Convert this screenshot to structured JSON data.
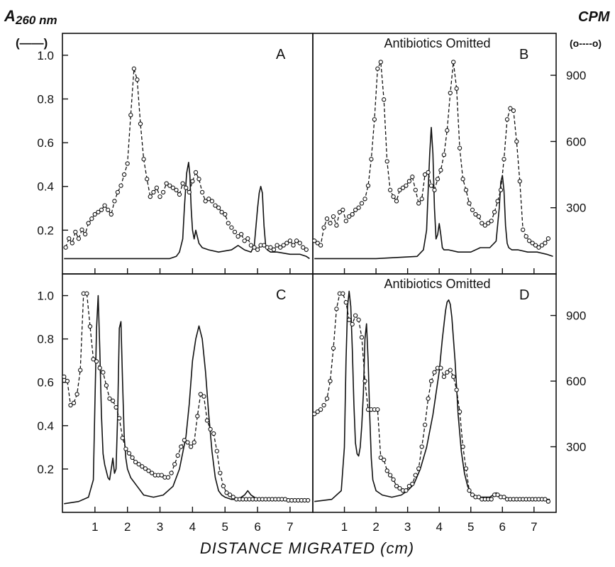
{
  "chart_data": {
    "type": "line",
    "left_axis_title_prefix": "A",
    "left_axis_title_sub": "260 nm",
    "left_axis_legend": "(——)",
    "right_axis_title": "CPM",
    "right_axis_legend": "(o----o)",
    "xlabel": "DISTANCE  MIGRATED (cm)",
    "x_ticks": [
      "1",
      "2",
      "3",
      "4",
      "5",
      "6",
      "7"
    ],
    "xlim": [
      0,
      7.7
    ],
    "left_ticks": [
      "0.2",
      "0.4",
      "0.6",
      "0.8",
      "1.0"
    ],
    "left_ylim": [
      0,
      1.1
    ],
    "right_ticks": [
      "300",
      "600",
      "900"
    ],
    "right_ylim": [
      0,
      1090
    ],
    "panels": [
      {
        "id": "A",
        "letter": "A",
        "annotation": "",
        "absorbance": {
          "x": [
            0.05,
            2.0,
            3.3,
            3.5,
            3.6,
            3.7,
            3.75,
            3.82,
            3.88,
            3.92,
            3.96,
            4.0,
            4.05,
            4.1,
            4.2,
            4.3,
            4.5,
            4.8,
            5.2,
            5.4,
            5.6,
            5.8,
            5.9,
            6.0,
            6.05,
            6.1,
            6.15,
            6.2,
            6.25,
            6.3,
            6.4,
            6.6,
            7.0,
            7.3,
            7.5,
            7.6
          ],
          "y": [
            0.07,
            0.07,
            0.07,
            0.08,
            0.1,
            0.16,
            0.3,
            0.46,
            0.51,
            0.45,
            0.3,
            0.2,
            0.16,
            0.2,
            0.14,
            0.12,
            0.11,
            0.1,
            0.11,
            0.13,
            0.11,
            0.1,
            0.13,
            0.3,
            0.37,
            0.4,
            0.37,
            0.22,
            0.13,
            0.11,
            0.1,
            0.1,
            0.09,
            0.09,
            0.08,
            0.07
          ]
        },
        "cpm": {
          "x": [
            0.1,
            0.2,
            0.3,
            0.4,
            0.5,
            0.6,
            0.7,
            0.8,
            0.9,
            1.0,
            1.1,
            1.2,
            1.3,
            1.4,
            1.5,
            1.6,
            1.7,
            1.8,
            1.9,
            2.0,
            2.1,
            2.2,
            2.3,
            2.4,
            2.5,
            2.6,
            2.7,
            2.8,
            2.9,
            3.0,
            3.1,
            3.2,
            3.3,
            3.4,
            3.5,
            3.6,
            3.7,
            3.8,
            3.9,
            4.0,
            4.1,
            4.2,
            4.3,
            4.4,
            4.5,
            4.6,
            4.7,
            4.8,
            4.9,
            5.0,
            5.1,
            5.2,
            5.3,
            5.4,
            5.5,
            5.6,
            5.7,
            5.8,
            5.9,
            6.0,
            6.1,
            6.2,
            6.3,
            6.4,
            6.5,
            6.6,
            6.7,
            6.8,
            6.9,
            7.0,
            7.1,
            7.2,
            7.3,
            7.4,
            7.5
          ],
          "y": [
            120,
            160,
            140,
            190,
            160,
            200,
            180,
            230,
            250,
            270,
            280,
            290,
            310,
            290,
            270,
            330,
            370,
            400,
            450,
            500,
            720,
            930,
            880,
            680,
            520,
            430,
            350,
            370,
            390,
            350,
            370,
            410,
            400,
            390,
            380,
            360,
            410,
            390,
            370,
            420,
            460,
            430,
            370,
            330,
            340,
            330,
            310,
            300,
            280,
            270,
            230,
            210,
            190,
            170,
            180,
            150,
            160,
            130,
            120,
            110,
            130,
            130,
            120,
            120,
            110,
            130,
            120,
            130,
            140,
            150,
            130,
            150,
            140,
            120,
            110
          ]
        }
      },
      {
        "id": "B",
        "letter": "B",
        "annotation": "Antibiotics Omitted",
        "absorbance": {
          "x": [
            0.05,
            2.0,
            3.3,
            3.5,
            3.6,
            3.65,
            3.7,
            3.75,
            3.8,
            3.85,
            3.9,
            3.95,
            4.0,
            4.05,
            4.1,
            4.15,
            4.3,
            4.6,
            5.0,
            5.3,
            5.6,
            5.8,
            5.9,
            5.95,
            6.0,
            6.05,
            6.1,
            6.15,
            6.2,
            6.3,
            6.5,
            6.8,
            7.1,
            7.4,
            7.6
          ],
          "y": [
            0.07,
            0.07,
            0.08,
            0.11,
            0.2,
            0.38,
            0.55,
            0.67,
            0.55,
            0.3,
            0.16,
            0.18,
            0.23,
            0.18,
            0.12,
            0.11,
            0.11,
            0.1,
            0.1,
            0.12,
            0.12,
            0.15,
            0.3,
            0.42,
            0.45,
            0.38,
            0.22,
            0.14,
            0.12,
            0.11,
            0.11,
            0.1,
            0.1,
            0.09,
            0.08
          ]
        },
        "cpm": {
          "x": [
            0.05,
            0.15,
            0.25,
            0.35,
            0.45,
            0.55,
            0.65,
            0.75,
            0.85,
            0.95,
            1.05,
            1.15,
            1.25,
            1.35,
            1.45,
            1.55,
            1.65,
            1.75,
            1.85,
            1.95,
            2.05,
            2.15,
            2.25,
            2.35,
            2.45,
            2.55,
            2.65,
            2.75,
            2.85,
            2.95,
            3.05,
            3.15,
            3.25,
            3.35,
            3.45,
            3.55,
            3.65,
            3.75,
            3.85,
            3.95,
            4.05,
            4.15,
            4.25,
            4.35,
            4.45,
            4.55,
            4.65,
            4.75,
            4.85,
            4.95,
            5.05,
            5.15,
            5.25,
            5.35,
            5.45,
            5.55,
            5.65,
            5.75,
            5.85,
            5.95,
            6.05,
            6.15,
            6.25,
            6.35,
            6.45,
            6.55,
            6.65,
            6.75,
            6.85,
            6.95,
            7.05,
            7.15,
            7.25,
            7.35,
            7.45
          ],
          "y": [
            150,
            140,
            130,
            210,
            250,
            230,
            260,
            220,
            280,
            290,
            240,
            260,
            270,
            290,
            300,
            320,
            340,
            400,
            520,
            700,
            930,
            960,
            790,
            510,
            380,
            350,
            330,
            380,
            390,
            400,
            420,
            440,
            380,
            320,
            340,
            450,
            460,
            400,
            380,
            430,
            470,
            540,
            650,
            820,
            960,
            840,
            570,
            430,
            380,
            320,
            290,
            270,
            260,
            230,
            220,
            230,
            240,
            280,
            330,
            380,
            520,
            700,
            750,
            740,
            600,
            420,
            200,
            170,
            150,
            140,
            130,
            120,
            130,
            140,
            160
          ]
        }
      },
      {
        "id": "C",
        "letter": "C",
        "annotation": "",
        "absorbance": {
          "x": [
            0.05,
            0.5,
            0.8,
            0.95,
            1.0,
            1.05,
            1.1,
            1.15,
            1.2,
            1.25,
            1.3,
            1.4,
            1.45,
            1.5,
            1.55,
            1.6,
            1.65,
            1.7,
            1.75,
            1.8,
            1.85,
            1.9,
            1.95,
            2.0,
            2.1,
            2.3,
            2.5,
            2.8,
            3.1,
            3.4,
            3.6,
            3.8,
            3.9,
            4.0,
            4.1,
            4.2,
            4.3,
            4.4,
            4.5,
            4.6,
            4.7,
            4.8,
            4.9,
            5.0,
            5.2,
            5.4,
            5.6,
            5.7,
            5.8,
            6.0,
            6.5,
            7.0,
            7.5
          ],
          "y": [
            0.04,
            0.05,
            0.07,
            0.15,
            0.5,
            0.85,
            1.0,
            0.75,
            0.45,
            0.27,
            0.22,
            0.16,
            0.15,
            0.2,
            0.25,
            0.18,
            0.2,
            0.45,
            0.85,
            0.88,
            0.6,
            0.35,
            0.25,
            0.2,
            0.16,
            0.12,
            0.08,
            0.07,
            0.08,
            0.12,
            0.2,
            0.35,
            0.5,
            0.7,
            0.8,
            0.86,
            0.8,
            0.65,
            0.45,
            0.28,
            0.16,
            0.1,
            0.08,
            0.07,
            0.06,
            0.06,
            0.08,
            0.1,
            0.08,
            0.06,
            0.06,
            0.06,
            0.06
          ]
        },
        "cpm": {
          "x": [
            0.05,
            0.15,
            0.25,
            0.35,
            0.45,
            0.55,
            0.65,
            0.75,
            0.85,
            0.95,
            1.05,
            1.15,
            1.25,
            1.35,
            1.45,
            1.55,
            1.65,
            1.75,
            1.85,
            1.95,
            2.05,
            2.15,
            2.25,
            2.35,
            2.45,
            2.55,
            2.65,
            2.75,
            2.85,
            2.95,
            3.05,
            3.15,
            3.25,
            3.35,
            3.45,
            3.55,
            3.65,
            3.75,
            3.85,
            3.95,
            4.05,
            4.15,
            4.25,
            4.35,
            4.45,
            4.55,
            4.65,
            4.75,
            4.85,
            4.95,
            5.05,
            5.15,
            5.25,
            5.35,
            5.45,
            5.55,
            5.65,
            5.75,
            5.85,
            5.95,
            6.05,
            6.15,
            6.25,
            6.35,
            6.45,
            6.55,
            6.65,
            6.75,
            6.85,
            6.95,
            7.05,
            7.15,
            7.25,
            7.35,
            7.45,
            7.55
          ],
          "y": [
            620,
            600,
            490,
            500,
            540,
            650,
            1000,
            1000,
            850,
            700,
            690,
            660,
            640,
            580,
            520,
            510,
            480,
            430,
            340,
            290,
            270,
            250,
            230,
            220,
            210,
            200,
            190,
            180,
            170,
            170,
            170,
            160,
            160,
            180,
            220,
            260,
            300,
            330,
            320,
            300,
            320,
            440,
            540,
            530,
            420,
            380,
            360,
            280,
            180,
            120,
            90,
            80,
            70,
            60,
            60,
            60,
            60,
            60,
            60,
            60,
            60,
            60,
            60,
            60,
            60,
            60,
            60,
            60,
            60,
            55,
            55,
            55,
            55,
            55,
            55,
            55
          ]
        }
      },
      {
        "id": "D",
        "letter": "D",
        "annotation": "Antibiotics Omitted",
        "absorbance": {
          "x": [
            0.05,
            0.6,
            0.9,
            1.0,
            1.05,
            1.1,
            1.15,
            1.2,
            1.25,
            1.3,
            1.35,
            1.4,
            1.45,
            1.5,
            1.55,
            1.6,
            1.65,
            1.7,
            1.75,
            1.8,
            1.85,
            1.9,
            2.0,
            2.2,
            2.5,
            2.8,
            3.0,
            3.2,
            3.4,
            3.6,
            3.8,
            4.0,
            4.1,
            4.2,
            4.25,
            4.3,
            4.35,
            4.4,
            4.5,
            4.6,
            4.7,
            4.8,
            4.9,
            5.0,
            5.2,
            5.4,
            5.6,
            5.8,
            6.0,
            6.5,
            7.0,
            7.5
          ],
          "y": [
            0.05,
            0.06,
            0.1,
            0.3,
            0.7,
            0.95,
            1.02,
            0.95,
            0.75,
            0.5,
            0.32,
            0.27,
            0.26,
            0.3,
            0.4,
            0.55,
            0.8,
            0.87,
            0.7,
            0.45,
            0.25,
            0.15,
            0.1,
            0.08,
            0.07,
            0.08,
            0.1,
            0.13,
            0.2,
            0.3,
            0.45,
            0.65,
            0.8,
            0.93,
            0.97,
            0.98,
            0.96,
            0.9,
            0.7,
            0.45,
            0.28,
            0.18,
            0.12,
            0.09,
            0.07,
            0.07,
            0.07,
            0.09,
            0.07,
            0.06,
            0.06,
            0.06
          ]
        },
        "cpm": {
          "x": [
            0.05,
            0.15,
            0.25,
            0.35,
            0.45,
            0.55,
            0.65,
            0.75,
            0.85,
            0.95,
            1.05,
            1.15,
            1.25,
            1.35,
            1.45,
            1.55,
            1.65,
            1.75,
            1.85,
            1.95,
            2.05,
            2.15,
            2.25,
            2.35,
            2.45,
            2.55,
            2.65,
            2.75,
            2.85,
            2.95,
            3.05,
            3.15,
            3.25,
            3.35,
            3.45,
            3.55,
            3.65,
            3.75,
            3.85,
            3.95,
            4.05,
            4.15,
            4.25,
            4.35,
            4.45,
            4.55,
            4.65,
            4.75,
            4.85,
            4.95,
            5.05,
            5.15,
            5.25,
            5.35,
            5.45,
            5.55,
            5.65,
            5.75,
            5.85,
            5.95,
            6.05,
            6.15,
            6.25,
            6.35,
            6.45,
            6.55,
            6.65,
            6.75,
            6.85,
            6.95,
            7.05,
            7.15,
            7.25,
            7.35,
            7.45
          ],
          "y": [
            450,
            460,
            470,
            490,
            520,
            600,
            750,
            930,
            1000,
            1000,
            960,
            880,
            860,
            900,
            880,
            800,
            600,
            470,
            470,
            470,
            470,
            250,
            240,
            190,
            170,
            150,
            120,
            110,
            100,
            100,
            120,
            130,
            170,
            200,
            300,
            400,
            520,
            600,
            640,
            660,
            660,
            620,
            640,
            650,
            620,
            560,
            460,
            300,
            200,
            100,
            80,
            70,
            70,
            60,
            60,
            60,
            60,
            80,
            80,
            70,
            70,
            60,
            60,
            60,
            60,
            60,
            60,
            60,
            60,
            60,
            60,
            60,
            60,
            60,
            50
          ]
        }
      }
    ]
  }
}
